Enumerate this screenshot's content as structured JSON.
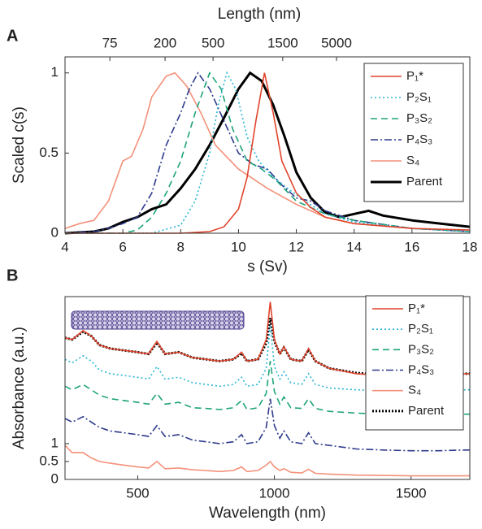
{
  "chart_data": [
    {
      "type": "line",
      "panel_label": "A",
      "x2label": "Length (nm)",
      "xlabel": "s (Sv)",
      "ylabel": "Scaled c(s)",
      "xlim": [
        4,
        18
      ],
      "xticks": [
        4,
        6,
        8,
        10,
        12,
        14,
        16,
        18
      ],
      "ylim": [
        0,
        1.1
      ],
      "yticks": [
        0,
        0.5,
        1
      ],
      "x2ticks": [
        {
          "value": 5.55,
          "label": "75"
        },
        {
          "value": 7.46,
          "label": "200"
        },
        {
          "value": 9.12,
          "label": "500"
        },
        {
          "value": 11.53,
          "label": "1500"
        },
        {
          "value": 13.39,
          "label": "5000"
        }
      ],
      "legend": "upper right",
      "series": [
        {
          "name": "P₁*",
          "color": "#e0442c",
          "style": "solid",
          "x": [
            4,
            8,
            9,
            9.5,
            10,
            10.3,
            10.6,
            10.9,
            11.2,
            11.5,
            12,
            12.5,
            13,
            14,
            16,
            18
          ],
          "values": [
            0,
            0,
            0.01,
            0.04,
            0.15,
            0.35,
            0.7,
            1.0,
            0.75,
            0.45,
            0.25,
            0.16,
            0.1,
            0.06,
            0.03,
            0.02
          ]
        },
        {
          "name": "P₂S₁",
          "color": "#2bb5d6",
          "style": "dotted",
          "x": [
            4,
            7,
            8,
            8.5,
            9,
            9.3,
            9.6,
            9.9,
            10.3,
            10.7,
            11.2,
            11.7,
            12.3,
            13,
            14,
            16,
            18
          ],
          "values": [
            0,
            0,
            0.05,
            0.2,
            0.5,
            0.8,
            1.0,
            0.9,
            0.6,
            0.45,
            0.35,
            0.28,
            0.2,
            0.12,
            0.07,
            0.03,
            0.01
          ]
        },
        {
          "name": "P₃S₂",
          "color": "#1ea37a",
          "style": "dashed",
          "x": [
            4,
            6,
            6.5,
            7,
            7.5,
            8,
            8.5,
            9,
            9.4,
            9.8,
            10.3,
            10.8,
            11.3,
            12,
            13,
            14,
            16,
            18
          ],
          "values": [
            0,
            0,
            0.02,
            0.1,
            0.25,
            0.45,
            0.75,
            1.0,
            0.9,
            0.65,
            0.45,
            0.4,
            0.33,
            0.2,
            0.12,
            0.08,
            0.03,
            0.01
          ]
        },
        {
          "name": "P₄S₃",
          "color": "#2e3a8c",
          "style": "dashdot",
          "x": [
            4,
            5,
            5.5,
            6,
            6.5,
            7,
            7.5,
            8,
            8.3,
            8.6,
            9,
            9.5,
            10,
            10.5,
            11,
            11.5,
            12,
            12.5,
            13,
            14,
            16,
            18
          ],
          "values": [
            0,
            0.01,
            0.03,
            0.06,
            0.1,
            0.25,
            0.55,
            0.75,
            0.9,
            1.0,
            0.9,
            0.7,
            0.5,
            0.43,
            0.4,
            0.3,
            0.22,
            0.2,
            0.14,
            0.08,
            0.03,
            0.01
          ]
        },
        {
          "name": "S₄",
          "color": "#f4917a",
          "style": "solid",
          "x": [
            4,
            4.5,
            5,
            5.5,
            5.8,
            6,
            6.3,
            6.7,
            7,
            7.5,
            7.8,
            8.2,
            8.7,
            9.2,
            10,
            11,
            12,
            13,
            14,
            16,
            18
          ],
          "values": [
            0.03,
            0.06,
            0.08,
            0.2,
            0.35,
            0.45,
            0.48,
            0.65,
            0.85,
            0.98,
            1.0,
            0.92,
            0.75,
            0.55,
            0.4,
            0.28,
            0.18,
            0.1,
            0.06,
            0.03,
            0.01
          ]
        },
        {
          "name": "Parent",
          "color": "#000000",
          "style": "thick",
          "x": [
            4,
            5,
            5.5,
            6,
            6.5,
            7,
            7.5,
            8,
            8.5,
            9,
            9.5,
            10,
            10.4,
            10.8,
            11.2,
            11.6,
            12,
            12.5,
            13,
            13.5,
            14,
            14.5,
            15,
            16,
            17,
            18
          ],
          "values": [
            0,
            0.01,
            0.03,
            0.07,
            0.1,
            0.15,
            0.18,
            0.28,
            0.4,
            0.55,
            0.72,
            0.9,
            1.0,
            0.95,
            0.8,
            0.6,
            0.38,
            0.22,
            0.13,
            0.1,
            0.12,
            0.14,
            0.11,
            0.08,
            0.06,
            0.04
          ]
        }
      ]
    },
    {
      "type": "line",
      "panel_label": "B",
      "xlabel": "Wavelength (nm)",
      "ylabel": "Absorbance (a.u.)",
      "xlim": [
        234,
        1715
      ],
      "xticks": [
        500,
        1000,
        1500
      ],
      "ylim": [
        0,
        5.1
      ],
      "yticks": [
        0,
        0.5,
        1
      ],
      "legend": "upper right",
      "x": [
        234,
        260,
        300,
        330,
        360,
        400,
        450,
        500,
        540,
        570,
        600,
        650,
        700,
        750,
        800,
        850,
        880,
        900,
        940,
        970,
        985,
        1000,
        1020,
        1035,
        1060,
        1100,
        1125,
        1150,
        1200,
        1300,
        1400,
        1500,
        1600,
        1700,
        1715
      ],
      "series": [
        {
          "name": "P₁*",
          "color": "#e0442c",
          "style": "solid",
          "values": [
            3.95,
            3.9,
            4.15,
            4.0,
            3.75,
            3.65,
            3.6,
            3.55,
            3.5,
            3.85,
            3.5,
            3.55,
            3.4,
            3.35,
            3.3,
            3.35,
            3.55,
            3.3,
            3.35,
            3.9,
            4.95,
            3.9,
            3.5,
            3.7,
            3.35,
            3.3,
            3.65,
            3.3,
            3.1,
            2.95,
            2.9,
            2.9,
            2.9,
            2.95,
            2.95
          ]
        },
        {
          "name": "P₂S₁",
          "color": "#2bb5d6",
          "style": "dotted",
          "values": [
            3.35,
            3.25,
            3.45,
            3.3,
            3.05,
            2.95,
            2.9,
            2.85,
            2.8,
            3.15,
            2.8,
            2.85,
            2.7,
            2.65,
            2.6,
            2.65,
            2.85,
            2.6,
            2.65,
            3.1,
            4.3,
            3.15,
            2.8,
            3.0,
            2.7,
            2.65,
            2.95,
            2.65,
            2.55,
            2.5,
            2.48,
            2.47,
            2.47,
            2.5,
            2.5
          ]
        },
        {
          "name": "P₃S₂",
          "color": "#1ea37a",
          "style": "dashed",
          "values": [
            2.6,
            2.5,
            2.65,
            2.5,
            2.35,
            2.25,
            2.2,
            2.15,
            2.1,
            2.4,
            2.1,
            2.15,
            2.0,
            1.98,
            1.95,
            2.0,
            2.2,
            1.95,
            2.0,
            2.4,
            3.3,
            2.45,
            2.1,
            2.3,
            2.0,
            1.98,
            2.25,
            1.98,
            1.9,
            1.85,
            1.82,
            1.8,
            1.8,
            1.82,
            1.82
          ]
        },
        {
          "name": "P₄S₃",
          "color": "#2e3a8c",
          "style": "dashdot",
          "values": [
            1.7,
            1.6,
            1.75,
            1.6,
            1.45,
            1.35,
            1.3,
            1.25,
            1.2,
            1.5,
            1.2,
            1.25,
            1.1,
            1.05,
            1.0,
            1.05,
            1.25,
            1.0,
            1.05,
            1.45,
            2.25,
            1.5,
            1.15,
            1.35,
            1.05,
            1.0,
            1.3,
            1.0,
            0.95,
            0.85,
            0.82,
            0.8,
            0.8,
            0.82,
            0.82
          ]
        },
        {
          "name": "S₄",
          "color": "#f4917a",
          "style": "solid",
          "values": [
            0.95,
            0.75,
            0.75,
            0.6,
            0.5,
            0.45,
            0.4,
            0.35,
            0.32,
            0.5,
            0.3,
            0.32,
            0.27,
            0.25,
            0.22,
            0.25,
            0.35,
            0.22,
            0.25,
            0.4,
            0.5,
            0.35,
            0.25,
            0.3,
            0.2,
            0.18,
            0.28,
            0.17,
            0.15,
            0.12,
            0.11,
            0.1,
            0.1,
            0.1,
            0.1
          ]
        },
        {
          "name": "Parent",
          "color": "#000000",
          "style": "thickdotted",
          "values": [
            3.95,
            3.9,
            4.12,
            4.0,
            3.75,
            3.65,
            3.6,
            3.55,
            3.5,
            3.82,
            3.5,
            3.55,
            3.4,
            3.35,
            3.3,
            3.35,
            3.52,
            3.3,
            3.35,
            3.8,
            4.5,
            3.85,
            3.5,
            3.68,
            3.35,
            3.3,
            3.62,
            3.3,
            3.1,
            2.97,
            2.92,
            2.9,
            2.9,
            2.95,
            2.95
          ]
        }
      ]
    }
  ]
}
